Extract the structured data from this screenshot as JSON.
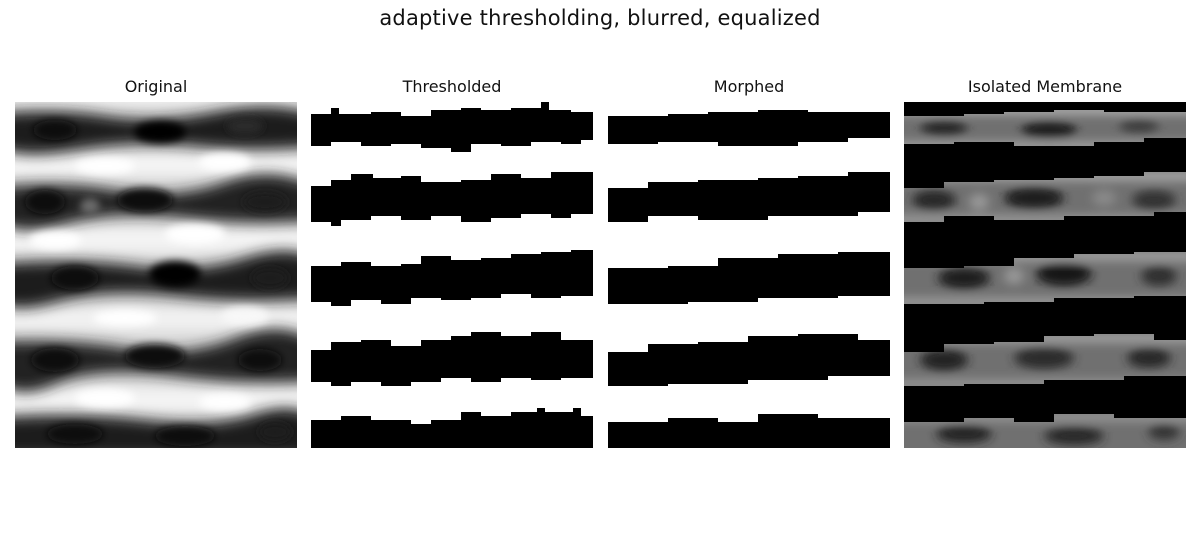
{
  "figure": {
    "title": "adaptive thresholding, blurred, equalized"
  },
  "panels": [
    {
      "title": "Original"
    },
    {
      "title": "Thresholded"
    },
    {
      "title": "Morphed"
    },
    {
      "title": "Isolated Membrane"
    }
  ],
  "colors": {
    "background": "#ffffff",
    "foreground": "#000000"
  }
}
